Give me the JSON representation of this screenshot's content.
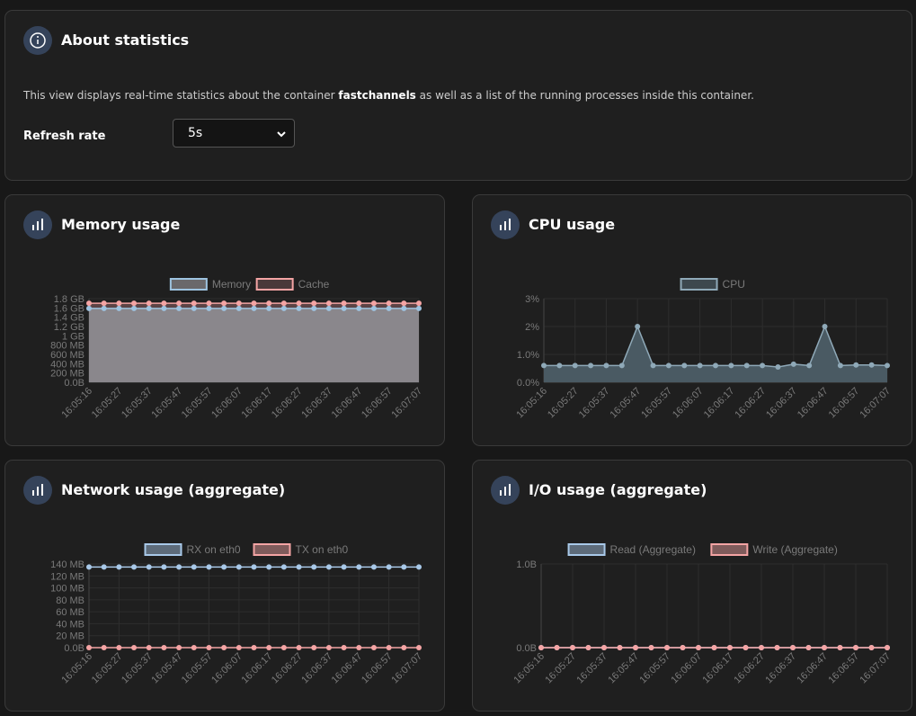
{
  "about": {
    "title": "About statistics",
    "description": [
      "This view displays real-time statistics about the container ",
      "fastchannels",
      " as well as a list of the running processes inside this container."
    ],
    "refresh_label": "Refresh rate",
    "refresh_value": "5s"
  },
  "chart_data": [
    {
      "type": "area",
      "title": "Memory usage",
      "categories": [
        "16:05:16",
        null,
        "16:05:27",
        null,
        "16:05:37",
        null,
        "16:05:47",
        null,
        "16:05:57",
        null,
        "16:06:07",
        null,
        "16:06:17",
        null,
        "16:06:27",
        null,
        "16:06:37",
        null,
        "16:06:47",
        null,
        "16:06:57",
        null,
        "16:07:07"
      ],
      "ylim": [
        0,
        1800
      ],
      "yticks": [
        {
          "value": 0,
          "label": "0.0B"
        },
        {
          "value": 200,
          "label": "200 MB"
        },
        {
          "value": 400,
          "label": "400 MB"
        },
        {
          "value": 600,
          "label": "600 MB"
        },
        {
          "value": 800,
          "label": "800 MB"
        },
        {
          "value": 1000,
          "label": "1 GB"
        },
        {
          "value": 1200,
          "label": "1.2 GB"
        },
        {
          "value": 1400,
          "label": "1.4 GB"
        },
        {
          "value": 1600,
          "label": "1.6 GB"
        },
        {
          "value": 1800,
          "label": "1.8 GB"
        }
      ],
      "series": [
        {
          "name": "Memory",
          "color": "#9ec3e0",
          "fill": "#8a878c",
          "values": [
            1590,
            1590,
            1590,
            1590,
            1590,
            1590,
            1590,
            1590,
            1590,
            1590,
            1590,
            1590,
            1590,
            1590,
            1590,
            1590,
            1590,
            1590,
            1590,
            1590,
            1590,
            1590,
            1590
          ]
        },
        {
          "name": "Cache",
          "color": "#f4a4a4",
          "fill": "#5c4446",
          "values": [
            1700,
            1700,
            1700,
            1700,
            1700,
            1700,
            1700,
            1700,
            1700,
            1700,
            1700,
            1700,
            1700,
            1700,
            1700,
            1700,
            1700,
            1700,
            1700,
            1700,
            1700,
            1700,
            1700
          ]
        }
      ]
    },
    {
      "type": "area",
      "title": "CPU usage",
      "categories": [
        "16:05:16",
        null,
        "16:05:27",
        null,
        "16:05:37",
        null,
        "16:05:47",
        null,
        "16:05:57",
        null,
        "16:06:07",
        null,
        "16:06:17",
        null,
        "16:06:27",
        null,
        "16:06:37",
        null,
        "16:06:47",
        null,
        "16:06:57",
        null,
        "16:07:07"
      ],
      "ylim": [
        0,
        3
      ],
      "yticks": [
        {
          "value": 0,
          "label": "0.0%"
        },
        {
          "value": 1,
          "label": "1.0%"
        },
        {
          "value": 2,
          "label": "2%"
        },
        {
          "value": 3,
          "label": "3%"
        }
      ],
      "series": [
        {
          "name": "CPU",
          "color": "#8fa9b8",
          "fill": "#4a5a63",
          "values": [
            0.6,
            0.6,
            0.6,
            0.6,
            0.6,
            0.6,
            2.0,
            0.6,
            0.6,
            0.6,
            0.6,
            0.6,
            0.6,
            0.6,
            0.6,
            0.55,
            0.65,
            0.6,
            2.0,
            0.6,
            0.62,
            0.62,
            0.6
          ]
        }
      ]
    },
    {
      "type": "line",
      "title": "Network usage (aggregate)",
      "categories": [
        "16:05:16",
        null,
        "16:05:27",
        null,
        "16:05:37",
        null,
        "16:05:47",
        null,
        "16:05:57",
        null,
        "16:06:07",
        null,
        "16:06:17",
        null,
        "16:06:27",
        null,
        "16:06:37",
        null,
        "16:06:47",
        null,
        "16:06:57",
        null,
        "16:07:07"
      ],
      "ylim": [
        0,
        140
      ],
      "yticks": [
        {
          "value": 0,
          "label": "0.0B"
        },
        {
          "value": 20,
          "label": "20 MB"
        },
        {
          "value": 40,
          "label": "40 MB"
        },
        {
          "value": 60,
          "label": "60 MB"
        },
        {
          "value": 80,
          "label": "80 MB"
        },
        {
          "value": 100,
          "label": "100 MB"
        },
        {
          "value": 120,
          "label": "120 MB"
        },
        {
          "value": 140,
          "label": "140 MB"
        }
      ],
      "series": [
        {
          "name": "RX on eth0",
          "color": "#a8c8e8",
          "values": [
            135,
            135,
            135,
            135,
            135,
            135,
            135,
            135,
            135,
            135,
            135,
            135,
            135,
            135,
            135,
            135,
            135,
            135,
            135,
            135,
            135,
            135,
            135
          ]
        },
        {
          "name": "TX on eth0",
          "color": "#f4a4a4",
          "values": [
            0,
            0,
            0,
            0,
            0,
            0,
            0,
            0,
            0,
            0,
            0,
            0,
            0,
            0,
            0,
            0,
            0,
            0,
            0,
            0,
            0,
            0,
            0
          ]
        }
      ]
    },
    {
      "type": "line",
      "title": "I/O usage (aggregate)",
      "categories": [
        "16:05:16",
        null,
        "16:05:27",
        null,
        "16:05:37",
        null,
        "16:05:47",
        null,
        "16:05:57",
        null,
        "16:06:07",
        null,
        "16:06:17",
        null,
        "16:06:27",
        null,
        "16:06:37",
        null,
        "16:06:47",
        null,
        "16:06:57",
        null,
        "16:07:07"
      ],
      "ylim": [
        0,
        1
      ],
      "yticks": [
        {
          "value": 0,
          "label": "0.0B"
        },
        {
          "value": 1,
          "label": "1.0B"
        }
      ],
      "series": [
        {
          "name": "Read (Aggregate)",
          "color": "#a8c8e8",
          "values": [
            0,
            0,
            0,
            0,
            0,
            0,
            0,
            0,
            0,
            0,
            0,
            0,
            0,
            0,
            0,
            0,
            0,
            0,
            0,
            0,
            0,
            0,
            0
          ]
        },
        {
          "name": "Write (Aggregate)",
          "color": "#f4a4a4",
          "values": [
            0,
            0,
            0,
            0,
            0,
            0,
            0,
            0,
            0,
            0,
            0,
            0,
            0,
            0,
            0,
            0,
            0,
            0,
            0,
            0,
            0,
            0,
            0
          ]
        }
      ]
    }
  ]
}
